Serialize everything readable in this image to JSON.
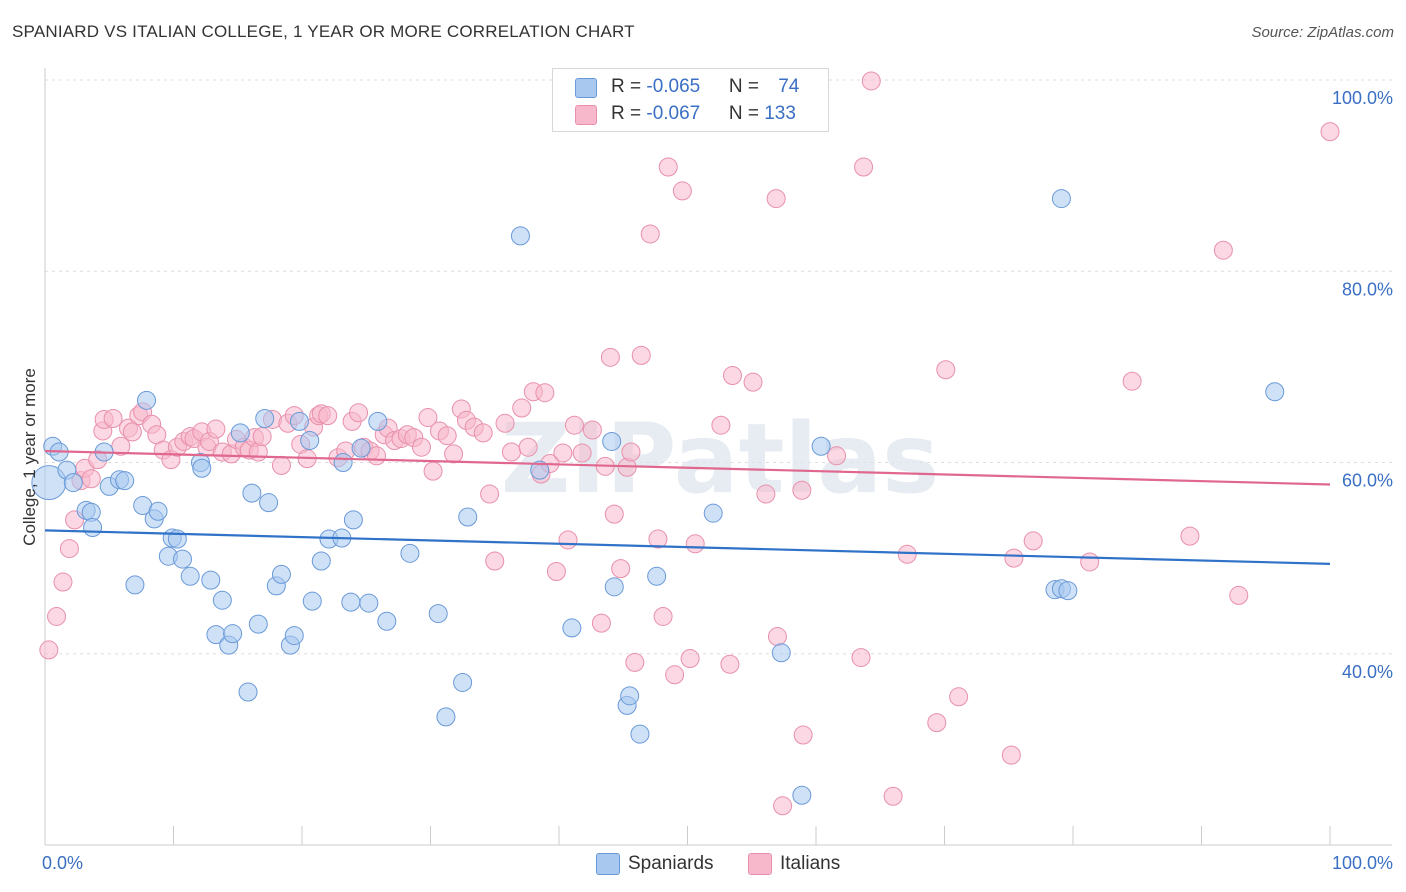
{
  "title": "SPANIARD VS ITALIAN COLLEGE, 1 YEAR OR MORE CORRELATION CHART",
  "source": "Source: ZipAtlas.com",
  "watermark": "ZIPatlas",
  "legend": {
    "rows": [
      {
        "r_label": "R = ",
        "r_value": "-0.065",
        "n_label": "N = ",
        "n_value": "74"
      },
      {
        "r_label": "R = ",
        "r_value": "-0.067",
        "n_label": "N = ",
        "n_value": "133"
      }
    ],
    "bottom": [
      "Spaniards",
      "Italians"
    ]
  },
  "colors": {
    "spaniards_fill": "#a8c8f0",
    "spaniards_stroke": "#6a9ad8",
    "spaniards_line": "#2f72c8",
    "italians_fill": "#f8b8cc",
    "italians_stroke": "#e890ac",
    "italians_line": "#e0688e",
    "tick_label": "#3a6fc4",
    "grid": "#dddddd"
  },
  "chart_data": {
    "type": "scatter",
    "title": "SPANIARD VS ITALIAN COLLEGE, 1 YEAR OR MORE CORRELATION CHART",
    "xlabel": "",
    "ylabel": "College, 1 year or more",
    "xlim": [
      0,
      100
    ],
    "ylim": [
      20,
      100
    ],
    "y_ticks": [
      40,
      60,
      80,
      100
    ],
    "y_tick_labels": [
      "40.0%",
      "60.0%",
      "80.0%",
      "100.0%"
    ],
    "x_tick_labels": [
      "0.0%",
      "100.0%"
    ],
    "grid": true,
    "legend_position": "top-center",
    "series": [
      {
        "name": "Spaniards",
        "trend": [
          [
            0,
            52.9
          ],
          [
            100,
            49.4
          ]
        ],
        "points": [
          [
            0.3,
            57.9
          ],
          [
            0.6,
            61.7
          ],
          [
            1.1,
            61.1
          ],
          [
            1.7,
            59.2
          ],
          [
            2.2,
            57.9
          ],
          [
            3.2,
            55.0
          ],
          [
            3.6,
            54.8
          ],
          [
            3.7,
            53.2
          ],
          [
            4.6,
            61.1
          ],
          [
            5.0,
            57.5
          ],
          [
            5.8,
            58.2
          ],
          [
            6.2,
            58.1
          ],
          [
            7.0,
            47.2
          ],
          [
            7.6,
            55.5
          ],
          [
            7.9,
            66.5
          ],
          [
            8.5,
            54.1
          ],
          [
            8.8,
            54.9
          ],
          [
            9.6,
            50.2
          ],
          [
            9.9,
            52.1
          ],
          [
            10.3,
            52.0
          ],
          [
            10.7,
            49.9
          ],
          [
            11.3,
            48.1
          ],
          [
            12.1,
            60.0
          ],
          [
            12.2,
            59.4
          ],
          [
            12.9,
            47.7
          ],
          [
            13.3,
            42.0
          ],
          [
            13.8,
            45.6
          ],
          [
            14.3,
            40.9
          ],
          [
            14.6,
            42.1
          ],
          [
            15.2,
            63.1
          ],
          [
            15.8,
            36.0
          ],
          [
            16.1,
            56.8
          ],
          [
            16.6,
            43.1
          ],
          [
            17.1,
            64.6
          ],
          [
            17.4,
            55.8
          ],
          [
            18.0,
            47.1
          ],
          [
            18.4,
            48.3
          ],
          [
            19.1,
            40.9
          ],
          [
            19.4,
            41.9
          ],
          [
            19.8,
            64.3
          ],
          [
            20.6,
            62.3
          ],
          [
            20.8,
            45.5
          ],
          [
            21.5,
            49.7
          ],
          [
            22.1,
            52.0
          ],
          [
            23.2,
            60.0
          ],
          [
            23.1,
            52.1
          ],
          [
            23.8,
            45.4
          ],
          [
            24.0,
            54.0
          ],
          [
            24.6,
            61.5
          ],
          [
            25.2,
            45.3
          ],
          [
            25.9,
            64.3
          ],
          [
            26.6,
            43.4
          ],
          [
            28.4,
            50.5
          ],
          [
            30.6,
            44.2
          ],
          [
            31.2,
            33.4
          ],
          [
            32.5,
            37.0
          ],
          [
            32.9,
            54.3
          ],
          [
            37.0,
            83.7
          ],
          [
            38.5,
            59.2
          ],
          [
            41.0,
            42.7
          ],
          [
            44.1,
            62.2
          ],
          [
            44.3,
            47.0
          ],
          [
            45.3,
            34.6
          ],
          [
            45.5,
            35.6
          ],
          [
            46.3,
            31.6
          ],
          [
            47.6,
            48.1
          ],
          [
            52.0,
            54.7
          ],
          [
            57.3,
            40.1
          ],
          [
            58.9,
            25.2
          ],
          [
            60.4,
            61.7
          ],
          [
            78.6,
            46.7
          ],
          [
            79.1,
            46.8
          ],
          [
            79.6,
            46.6
          ],
          [
            79.1,
            87.6
          ],
          [
            95.7,
            67.4
          ]
        ]
      },
      {
        "name": "Italians",
        "trend": [
          [
            0,
            61.2
          ],
          [
            100,
            57.7
          ]
        ],
        "points": [
          [
            0.3,
            40.4
          ],
          [
            0.9,
            43.9
          ],
          [
            1.4,
            47.5
          ],
          [
            1.9,
            51.0
          ],
          [
            2.3,
            54.0
          ],
          [
            2.8,
            58.1
          ],
          [
            3.1,
            59.4
          ],
          [
            3.6,
            58.3
          ],
          [
            4.1,
            60.3
          ],
          [
            4.5,
            63.3
          ],
          [
            4.6,
            64.5
          ],
          [
            5.3,
            64.6
          ],
          [
            5.9,
            61.7
          ],
          [
            6.5,
            63.6
          ],
          [
            6.8,
            63.2
          ],
          [
            7.3,
            64.9
          ],
          [
            7.6,
            65.3
          ],
          [
            8.3,
            64.0
          ],
          [
            8.7,
            62.9
          ],
          [
            9.2,
            61.3
          ],
          [
            9.8,
            60.3
          ],
          [
            10.3,
            61.6
          ],
          [
            10.8,
            62.2
          ],
          [
            11.3,
            62.7
          ],
          [
            11.6,
            62.5
          ],
          [
            12.2,
            63.2
          ],
          [
            12.6,
            61.6
          ],
          [
            12.8,
            62.2
          ],
          [
            13.3,
            63.5
          ],
          [
            13.8,
            61.1
          ],
          [
            14.5,
            60.9
          ],
          [
            14.9,
            62.4
          ],
          [
            15.5,
            61.6
          ],
          [
            15.9,
            61.3
          ],
          [
            16.3,
            62.6
          ],
          [
            16.6,
            61.1
          ],
          [
            16.9,
            62.7
          ],
          [
            17.7,
            64.5
          ],
          [
            18.4,
            59.7
          ],
          [
            18.9,
            64.1
          ],
          [
            19.4,
            64.9
          ],
          [
            19.9,
            61.9
          ],
          [
            20.4,
            60.4
          ],
          [
            20.9,
            63.7
          ],
          [
            21.3,
            64.9
          ],
          [
            21.5,
            65.1
          ],
          [
            22.0,
            64.9
          ],
          [
            22.8,
            60.5
          ],
          [
            23.4,
            61.2
          ],
          [
            23.9,
            64.3
          ],
          [
            24.4,
            65.2
          ],
          [
            24.8,
            61.6
          ],
          [
            25.3,
            61.2
          ],
          [
            25.8,
            60.7
          ],
          [
            26.4,
            62.9
          ],
          [
            26.7,
            63.6
          ],
          [
            27.2,
            62.3
          ],
          [
            27.7,
            62.5
          ],
          [
            28.2,
            62.9
          ],
          [
            28.7,
            62.6
          ],
          [
            29.3,
            61.6
          ],
          [
            29.8,
            64.7
          ],
          [
            30.2,
            59.1
          ],
          [
            30.7,
            63.3
          ],
          [
            31.3,
            62.8
          ],
          [
            31.8,
            60.9
          ],
          [
            32.4,
            65.6
          ],
          [
            32.8,
            64.4
          ],
          [
            33.4,
            63.7
          ],
          [
            34.1,
            63.1
          ],
          [
            34.6,
            56.7
          ],
          [
            35.0,
            49.7
          ],
          [
            35.8,
            64.1
          ],
          [
            36.3,
            61.1
          ],
          [
            37.1,
            65.7
          ],
          [
            37.6,
            61.6
          ],
          [
            38.0,
            67.4
          ],
          [
            38.6,
            58.8
          ],
          [
            38.9,
            67.3
          ],
          [
            39.3,
            59.9
          ],
          [
            39.8,
            48.6
          ],
          [
            40.3,
            61.0
          ],
          [
            40.7,
            51.9
          ],
          [
            41.2,
            63.9
          ],
          [
            41.8,
            61.0
          ],
          [
            42.6,
            63.4
          ],
          [
            43.3,
            43.2
          ],
          [
            43.6,
            59.6
          ],
          [
            44.0,
            71.0
          ],
          [
            44.3,
            54.6
          ],
          [
            44.8,
            48.9
          ],
          [
            45.3,
            59.5
          ],
          [
            45.6,
            61.1
          ],
          [
            45.9,
            39.1
          ],
          [
            46.4,
            71.2
          ],
          [
            47.1,
            83.9
          ],
          [
            47.7,
            52.0
          ],
          [
            48.1,
            43.9
          ],
          [
            48.5,
            90.9
          ],
          [
            49.0,
            37.8
          ],
          [
            49.6,
            88.4
          ],
          [
            50.2,
            39.5
          ],
          [
            50.6,
            51.5
          ],
          [
            52.6,
            63.9
          ],
          [
            53.3,
            38.9
          ],
          [
            53.5,
            69.1
          ],
          [
            54.6,
            97.4
          ],
          [
            55.1,
            68.4
          ],
          [
            56.1,
            56.7
          ],
          [
            56.9,
            87.6
          ],
          [
            57.0,
            41.8
          ],
          [
            57.4,
            24.1
          ],
          [
            58.9,
            57.1
          ],
          [
            59.0,
            31.5
          ],
          [
            61.6,
            60.7
          ],
          [
            63.5,
            39.6
          ],
          [
            63.7,
            90.9
          ],
          [
            64.3,
            99.9
          ],
          [
            66.0,
            25.1
          ],
          [
            67.1,
            50.4
          ],
          [
            69.4,
            32.8
          ],
          [
            70.1,
            69.7
          ],
          [
            71.1,
            35.5
          ],
          [
            75.2,
            29.4
          ],
          [
            75.4,
            50.0
          ],
          [
            76.9,
            51.8
          ],
          [
            81.3,
            49.6
          ],
          [
            84.6,
            68.5
          ],
          [
            89.1,
            52.3
          ],
          [
            91.7,
            82.2
          ],
          [
            92.9,
            46.1
          ],
          [
            100.0,
            94.6
          ]
        ]
      }
    ]
  }
}
